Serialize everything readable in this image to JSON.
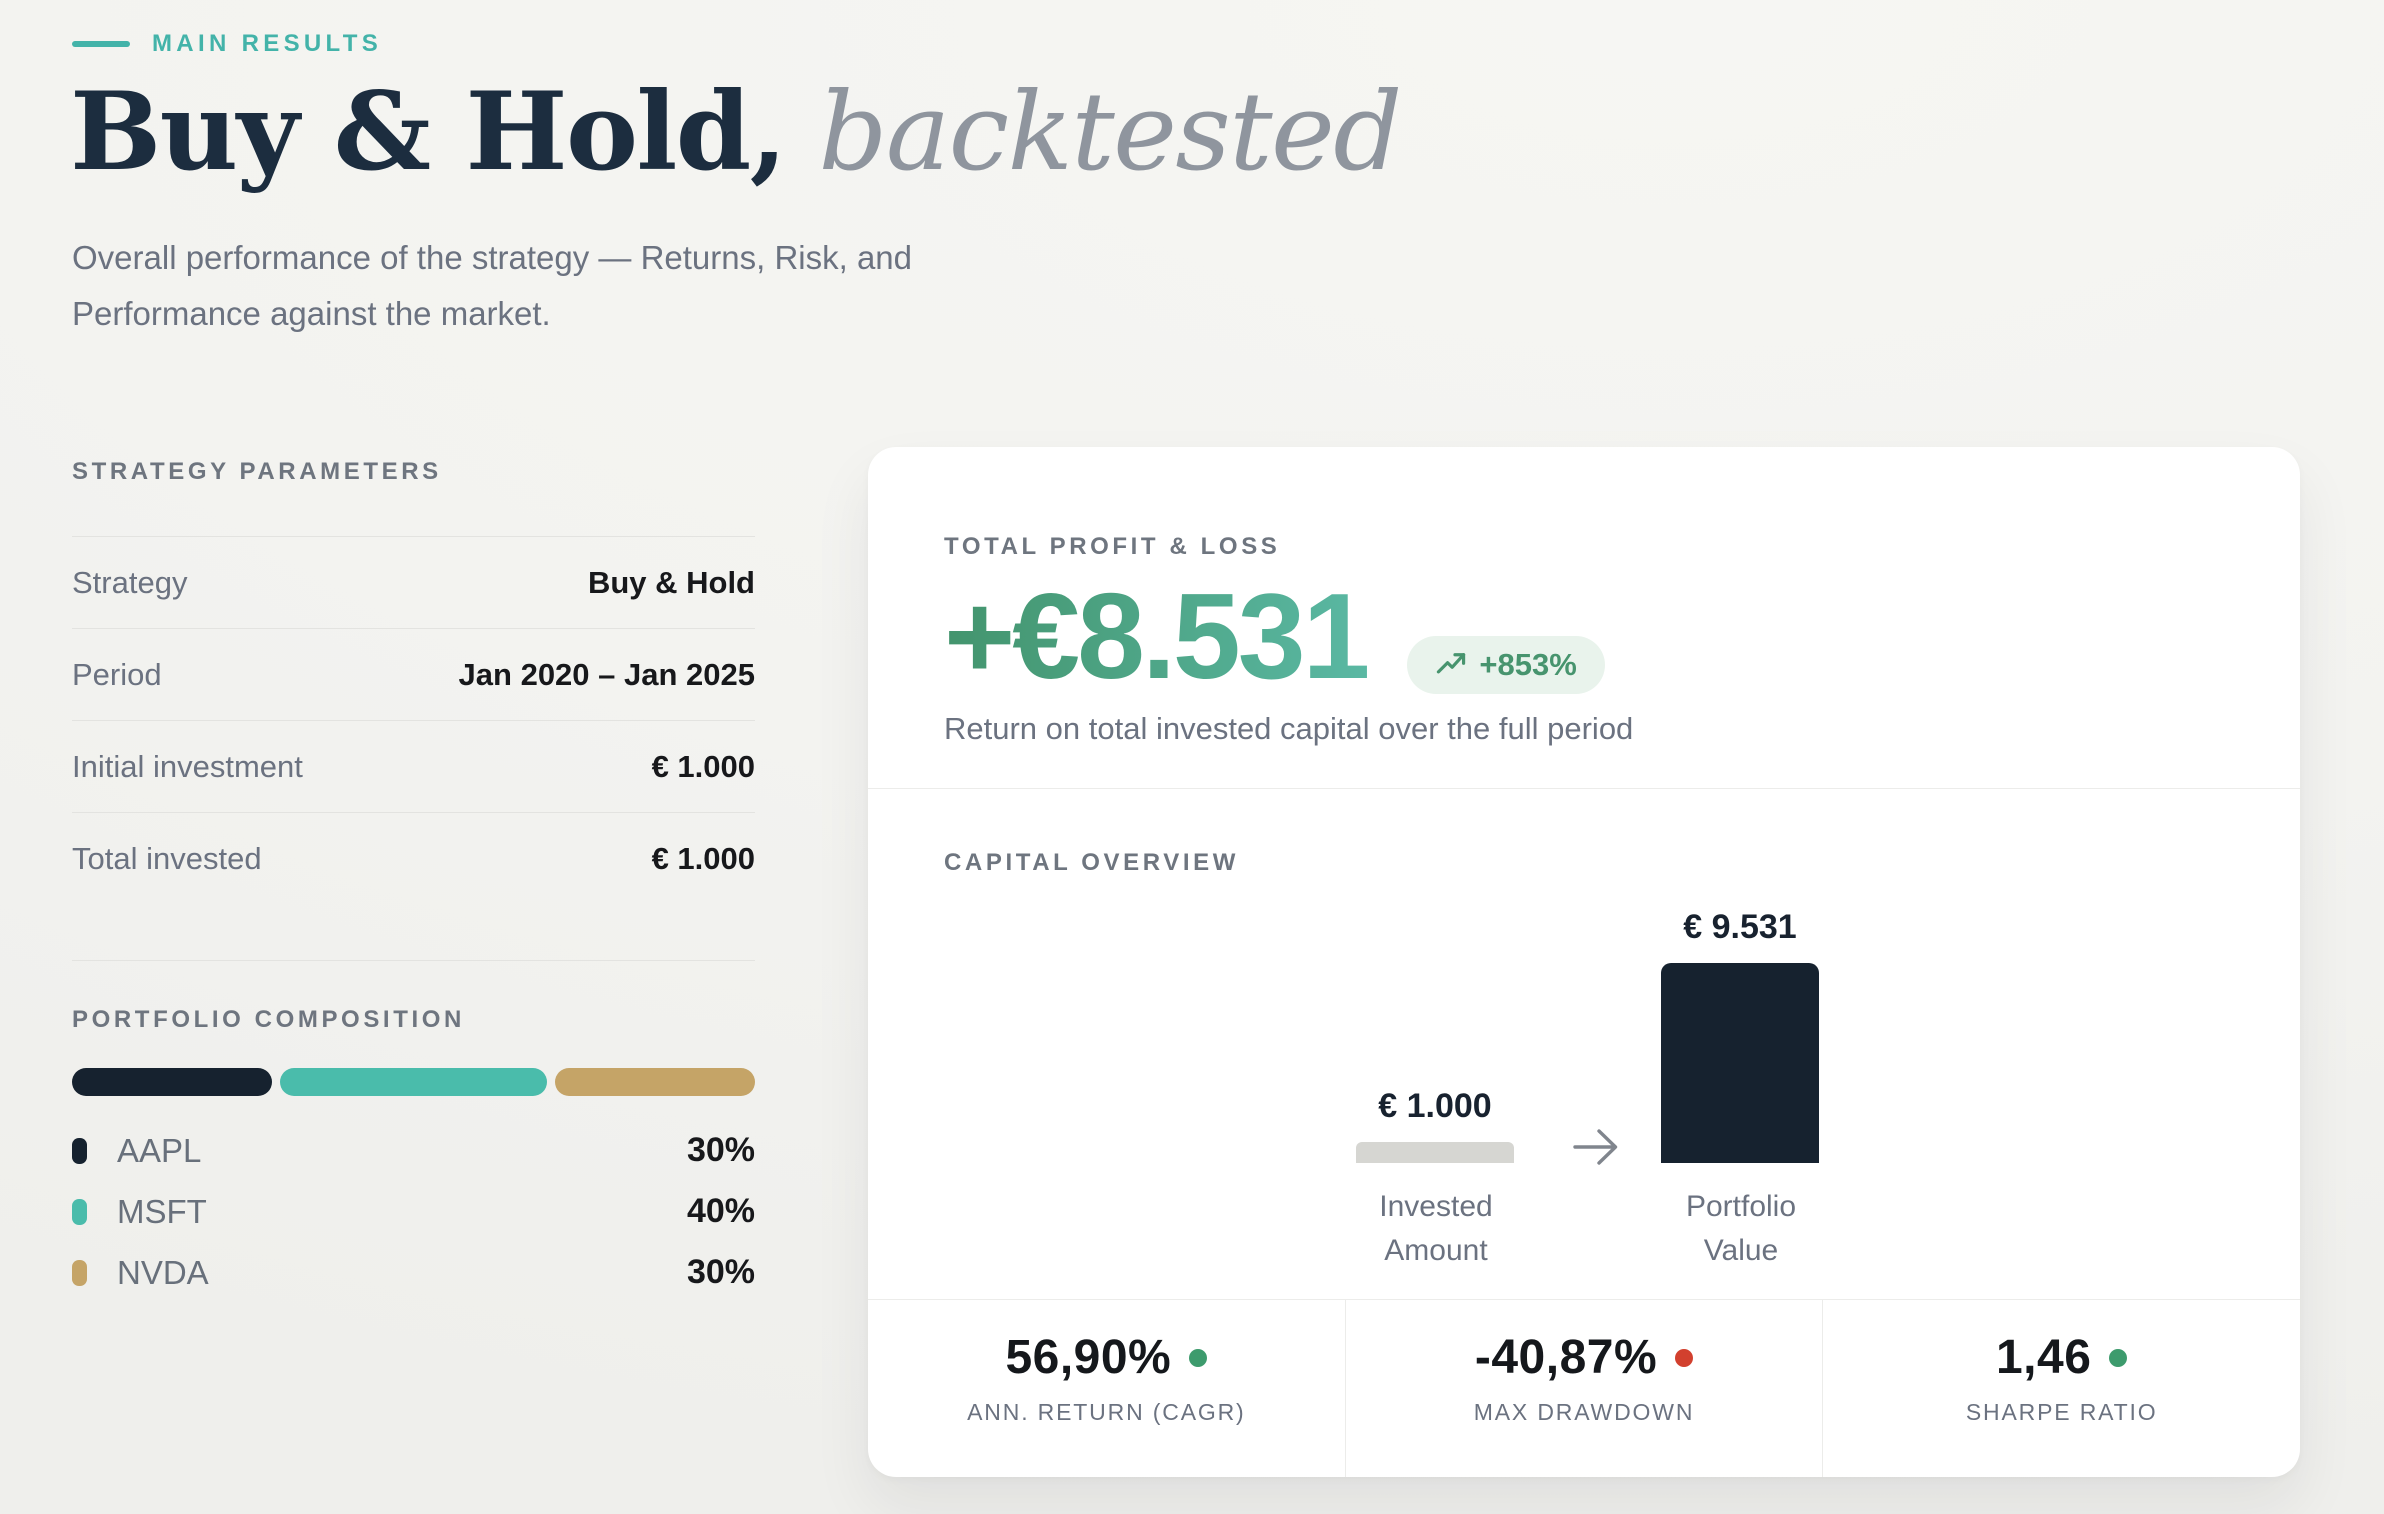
{
  "header": {
    "eyebrow": "MAIN RESULTS",
    "title": "Buy & Hold,",
    "title_italic": " backtested",
    "subtitle": "Overall performance of the strategy — Returns, Risk, and Performance against the market."
  },
  "strategy_parameters": {
    "heading": "STRATEGY PARAMETERS",
    "rows": [
      {
        "label": "Strategy",
        "value": "Buy & Hold"
      },
      {
        "label": "Period",
        "value": "Jan 2020 – Jan 2025"
      },
      {
        "label": "Initial investment",
        "value": "€ 1.000"
      },
      {
        "label": "Total invested",
        "value": "€ 1.000"
      }
    ]
  },
  "portfolio_composition": {
    "heading": "PORTFOLIO COMPOSITION",
    "items": [
      {
        "ticker": "AAPL",
        "weight": "30%",
        "value": 30,
        "color": "#16222f"
      },
      {
        "ticker": "MSFT",
        "weight": "40%",
        "value": 40,
        "color": "#4abcab"
      },
      {
        "ticker": "NVDA",
        "weight": "30%",
        "value": 30,
        "color": "#c5a467"
      }
    ]
  },
  "total_profit_loss": {
    "heading": "TOTAL PROFIT & LOSS",
    "amount": "+€8.531",
    "badge": "+853%",
    "description": "Return on total invested capital over the full period"
  },
  "capital_overview": {
    "heading": "CAPITAL OVERVIEW",
    "invested": {
      "value": "€ 1.000",
      "label_line1": "Invested",
      "label_line2": "Amount"
    },
    "portfolio": {
      "value": "€ 9.531",
      "label_line1": "Portfolio",
      "label_line2": "Value"
    }
  },
  "stats": [
    {
      "value": "56,90%",
      "label": "ANN. RETURN (CAGR)",
      "dot": "#3d9b6d"
    },
    {
      "value": "-40,87%",
      "label": "MAX DRAWDOWN",
      "dot": "#d2402e"
    },
    {
      "value": "1,46",
      "label": "SHARPE RATIO",
      "dot": "#3d9b6d"
    }
  ],
  "colors": {
    "accent_teal": "#43b3a9",
    "navy": "#16222f",
    "teal": "#4abcab",
    "gold": "#c5a467",
    "invested_bar_gray": "#d6d6d2",
    "amount_gradient_start": "#43946d",
    "amount_gradient_end": "#5ab8a3",
    "badge_bg": "#e9f3ec",
    "badge_text": "#47946e",
    "positive_dot": "#3d9b6d",
    "negative_dot": "#d2402e"
  },
  "chart_data": [
    {
      "name": "portfolio_composition",
      "type": "bar",
      "variant": "stacked-horizontal",
      "categories": [
        "AAPL",
        "MSFT",
        "NVDA"
      ],
      "values": [
        30,
        40,
        30
      ],
      "unit": "%",
      "colors": [
        "#16222f",
        "#4abcab",
        "#c5a467"
      ],
      "title": "PORTFOLIO COMPOSITION",
      "legend_position": "below"
    },
    {
      "name": "capital_overview",
      "type": "bar",
      "categories": [
        "Invested Amount",
        "Portfolio Value"
      ],
      "values": [
        1000,
        9531
      ],
      "value_labels": [
        "€ 1.000",
        "€ 9.531"
      ],
      "unit": "EUR",
      "colors": [
        "#d6d6d2",
        "#16222f"
      ],
      "title": "CAPITAL OVERVIEW",
      "ylim": [
        0,
        9531
      ],
      "grid": false
    }
  ]
}
